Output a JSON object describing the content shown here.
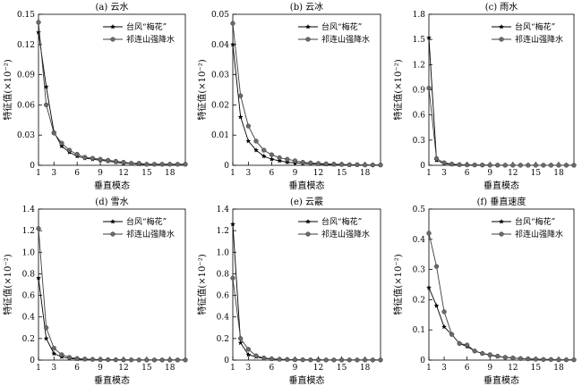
{
  "figure": {
    "x_label": "垂直模态",
    "y_label": "特征值(×10⁻²)",
    "legend": [
      "台风“梅花”",
      "祁连山强降水"
    ]
  },
  "chart_data": [
    {
      "type": "line",
      "title": "(a) 云水",
      "x": [
        1,
        2,
        3,
        4,
        5,
        6,
        7,
        8,
        9,
        10,
        11,
        12,
        13,
        14,
        15,
        16,
        17,
        18,
        19,
        20
      ],
      "xticks": [
        1,
        3,
        6,
        9,
        12,
        15,
        18
      ],
      "ylim": [
        0,
        0.15
      ],
      "yticks": [
        "0",
        "0.03",
        "0.06",
        "0.09",
        "0.12",
        "0.15"
      ],
      "series": [
        {
          "name": "台风“梅花”",
          "marker": "star",
          "values": [
            0.132,
            0.078,
            0.033,
            0.019,
            0.013,
            0.009,
            0.007,
            0.006,
            0.005,
            0.004,
            0.003,
            0.002,
            0.002,
            0.001,
            0.001,
            0.001,
            0.001,
            0.001,
            0.001,
            0.001
          ]
        },
        {
          "name": "祁连山强降水",
          "marker": "circle",
          "values": [
            0.142,
            0.06,
            0.032,
            0.022,
            0.015,
            0.011,
            0.008,
            0.007,
            0.006,
            0.005,
            0.004,
            0.003,
            0.002,
            0.002,
            0.001,
            0.001,
            0.001,
            0.001,
            0.001,
            0.001
          ]
        }
      ]
    },
    {
      "type": "line",
      "title": "(b) 云冰",
      "x": [
        1,
        2,
        3,
        4,
        5,
        6,
        7,
        8,
        9,
        10,
        11,
        12,
        13,
        14,
        15,
        16,
        17,
        18,
        19,
        20
      ],
      "xticks": [
        1,
        3,
        6,
        9,
        12,
        15,
        18
      ],
      "ylim": [
        0,
        0.05
      ],
      "yticks": [
        "0",
        "0.01",
        "0.02",
        "0.03",
        "0.04",
        "0.05"
      ],
      "series": [
        {
          "name": "台风“梅花”",
          "marker": "star",
          "values": [
            0.04,
            0.016,
            0.008,
            0.005,
            0.003,
            0.002,
            0.0015,
            0.001,
            0.0008,
            0.0006,
            0.0005,
            0.0004,
            0.0003,
            0.0002,
            0.0002,
            0.0001,
            0.0001,
            0.0001,
            0.0001,
            0.0001
          ]
        },
        {
          "name": "祁连山强降水",
          "marker": "circle",
          "values": [
            0.047,
            0.023,
            0.013,
            0.008,
            0.005,
            0.0035,
            0.0025,
            0.002,
            0.0015,
            0.001,
            0.0008,
            0.0006,
            0.0005,
            0.0004,
            0.0003,
            0.0002,
            0.0002,
            0.0001,
            0.0001,
            0.0001
          ]
        }
      ]
    },
    {
      "type": "line",
      "title": "(c) 雨水",
      "x": [
        1,
        2,
        3,
        4,
        5,
        6,
        7,
        8,
        9,
        10,
        11,
        12,
        13,
        14,
        15,
        16,
        17,
        18,
        19,
        20
      ],
      "xticks": [
        1,
        3,
        6,
        9,
        12,
        15,
        18
      ],
      "ylim": [
        0,
        1.8
      ],
      "yticks": [
        "0",
        "0.3",
        "0.6",
        "0.9",
        "1.2",
        "1.5",
        "1.8"
      ],
      "series": [
        {
          "name": "台风“梅花”",
          "marker": "star",
          "values": [
            1.52,
            0.06,
            0.02,
            0.01,
            0.005,
            0.004,
            0.003,
            0.002,
            0.002,
            0.001,
            0.001,
            0.001,
            0.001,
            0.001,
            0.001,
            0.001,
            0.001,
            0.001,
            0.001,
            0.001
          ]
        },
        {
          "name": "祁连山强降水",
          "marker": "circle",
          "values": [
            0.92,
            0.08,
            0.03,
            0.015,
            0.008,
            0.005,
            0.004,
            0.003,
            0.002,
            0.002,
            0.001,
            0.001,
            0.001,
            0.001,
            0.001,
            0.001,
            0.001,
            0.001,
            0.001,
            0.001
          ]
        }
      ]
    },
    {
      "type": "line",
      "title": "(d) 雪水",
      "x": [
        1,
        2,
        3,
        4,
        5,
        6,
        7,
        8,
        9,
        10,
        11,
        12,
        13,
        14,
        15,
        16,
        17,
        18,
        19,
        20
      ],
      "xticks": [
        1,
        3,
        6,
        9,
        12,
        15,
        18
      ],
      "ylim": [
        0,
        1.4
      ],
      "yticks": [
        "0",
        "0.2",
        "0.4",
        "0.6",
        "0.8",
        "1.0",
        "1.2",
        "1.4"
      ],
      "series": [
        {
          "name": "台风“梅花”",
          "marker": "star",
          "values": [
            0.76,
            0.2,
            0.06,
            0.03,
            0.015,
            0.01,
            0.007,
            0.005,
            0.004,
            0.003,
            0.002,
            0.002,
            0.001,
            0.001,
            0.001,
            0.001,
            0.001,
            0.001,
            0.001,
            0.001
          ]
        },
        {
          "name": "祁连山强降水",
          "marker": "circle",
          "values": [
            1.22,
            0.3,
            0.11,
            0.05,
            0.025,
            0.015,
            0.01,
            0.007,
            0.005,
            0.004,
            0.003,
            0.002,
            0.002,
            0.001,
            0.001,
            0.001,
            0.001,
            0.001,
            0.001,
            0.001
          ]
        }
      ]
    },
    {
      "type": "line",
      "title": "(e) 云霰",
      "x": [
        1,
        2,
        3,
        4,
        5,
        6,
        7,
        8,
        9,
        10,
        11,
        12,
        13,
        14,
        15,
        16,
        17,
        18,
        19,
        20
      ],
      "xticks": [
        1,
        3,
        6,
        9,
        12,
        15,
        18
      ],
      "ylim": [
        0,
        1.4
      ],
      "yticks": [
        "0",
        "0.2",
        "0.4",
        "0.6",
        "0.8",
        "1.0",
        "1.2",
        "1.4"
      ],
      "series": [
        {
          "name": "台风“梅花”",
          "marker": "star",
          "values": [
            1.26,
            0.16,
            0.05,
            0.03,
            0.015,
            0.01,
            0.007,
            0.005,
            0.004,
            0.003,
            0.002,
            0.002,
            0.001,
            0.001,
            0.001,
            0.001,
            0.001,
            0.001,
            0.001,
            0.001
          ]
        },
        {
          "name": "祁连山强降水",
          "marker": "circle",
          "values": [
            0.76,
            0.2,
            0.1,
            0.04,
            0.02,
            0.012,
            0.008,
            0.006,
            0.004,
            0.003,
            0.002,
            0.002,
            0.001,
            0.001,
            0.001,
            0.001,
            0.001,
            0.001,
            0.001,
            0.001
          ]
        }
      ]
    },
    {
      "type": "line",
      "title": "(f) 垂直速度",
      "x": [
        1,
        2,
        3,
        4,
        5,
        6,
        7,
        8,
        9,
        10,
        11,
        12,
        13,
        14,
        15,
        16,
        17,
        18,
        19,
        20
      ],
      "xticks": [
        1,
        3,
        6,
        9,
        12,
        15,
        18
      ],
      "ylim": [
        0,
        0.5
      ],
      "yticks": [
        "0",
        "0.1",
        "0.2",
        "0.3",
        "0.4",
        "0.5"
      ],
      "series": [
        {
          "name": "台风“梅花”",
          "marker": "star",
          "values": [
            0.24,
            0.18,
            0.11,
            0.085,
            0.055,
            0.045,
            0.03,
            0.022,
            0.016,
            0.012,
            0.009,
            0.007,
            0.005,
            0.004,
            0.003,
            0.002,
            0.002,
            0.001,
            0.001,
            0.001
          ]
        },
        {
          "name": "祁连山强降水",
          "marker": "circle",
          "values": [
            0.42,
            0.31,
            0.16,
            0.085,
            0.055,
            0.05,
            0.03,
            0.022,
            0.018,
            0.013,
            0.009,
            0.007,
            0.005,
            0.004,
            0.003,
            0.002,
            0.002,
            0.001,
            0.001,
            0.001
          ]
        }
      ]
    }
  ]
}
